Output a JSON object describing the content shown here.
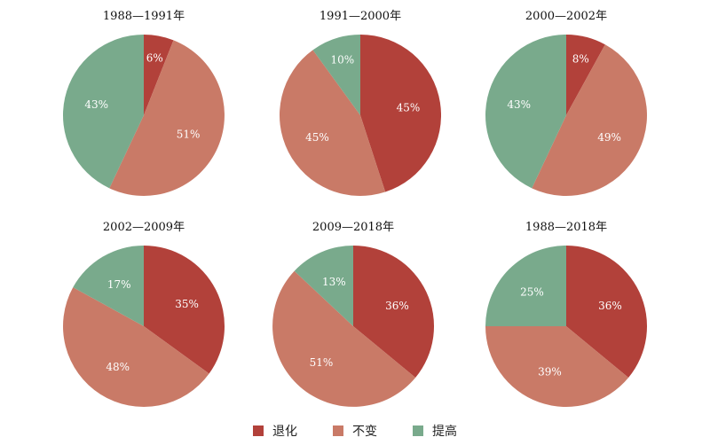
{
  "chart_data": [
    {
      "type": "pie",
      "title": "1988—1991年",
      "slices": [
        {
          "label": "退化",
          "value": 6
        },
        {
          "label": "不变",
          "value": 51
        },
        {
          "label": "提高",
          "value": 43
        }
      ]
    },
    {
      "type": "pie",
      "title": "1991—2000年",
      "slices": [
        {
          "label": "退化",
          "value": 45
        },
        {
          "label": "不变",
          "value": 45
        },
        {
          "label": "提高",
          "value": 10
        }
      ]
    },
    {
      "type": "pie",
      "title": "2000—2002年",
      "slices": [
        {
          "label": "退化",
          "value": 8
        },
        {
          "label": "不变",
          "value": 49
        },
        {
          "label": "提高",
          "value": 43
        }
      ]
    },
    {
      "type": "pie",
      "title": "2002—2009年",
      "slices": [
        {
          "label": "退化",
          "value": 35
        },
        {
          "label": "不变",
          "value": 48
        },
        {
          "label": "提高",
          "value": 17
        }
      ]
    },
    {
      "type": "pie",
      "title": "2009—2018年",
      "slices": [
        {
          "label": "退化",
          "value": 36
        },
        {
          "label": "不变",
          "value": 51
        },
        {
          "label": "提高",
          "value": 13
        }
      ]
    },
    {
      "type": "pie",
      "title": "1988—2018年",
      "slices": [
        {
          "label": "退化",
          "value": 36
        },
        {
          "label": "不变",
          "value": 39
        },
        {
          "label": "提高",
          "value": 25
        }
      ]
    }
  ],
  "legend": [
    {
      "label": "退化",
      "color": "#b2413a"
    },
    {
      "label": "不变",
      "color": "#c97a67"
    },
    {
      "label": "提高",
      "color": "#79aa8c"
    }
  ],
  "value_suffix": "%"
}
